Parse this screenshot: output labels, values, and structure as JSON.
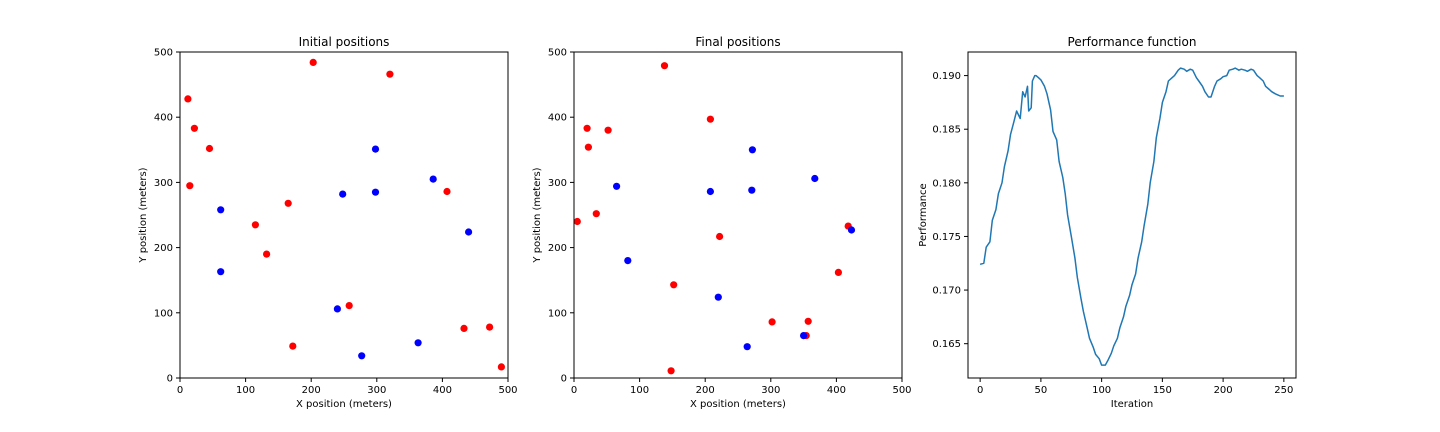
{
  "chart_data": [
    {
      "type": "scatter",
      "title": "Initial positions",
      "xlabel": "X position (meters)",
      "ylabel": "Y position (meters)",
      "xlim": [
        0,
        500
      ],
      "ylim": [
        0,
        500
      ],
      "xticks": [
        0,
        100,
        200,
        300,
        400,
        500
      ],
      "yticks": [
        0,
        100,
        200,
        300,
        400,
        500
      ],
      "grid": false,
      "series": [
        {
          "color": "#ff0000",
          "points": [
            [
              12,
              428
            ],
            [
              22,
              383
            ],
            [
              45,
              352
            ],
            [
              15,
              295
            ],
            [
              115,
              235
            ],
            [
              132,
              190
            ],
            [
              165,
              268
            ],
            [
              203,
              484
            ],
            [
              320,
              466
            ],
            [
              407,
              286
            ],
            [
              258,
              111
            ],
            [
              172,
              49
            ],
            [
              433,
              76
            ],
            [
              472,
              78
            ],
            [
              490,
              17
            ]
          ]
        },
        {
          "color": "#0000ff",
          "points": [
            [
              62,
              258
            ],
            [
              62,
              163
            ],
            [
              248,
              282
            ],
            [
              298,
              351
            ],
            [
              298,
              285
            ],
            [
              386,
              305
            ],
            [
              440,
              224
            ],
            [
              240,
              106
            ],
            [
              277,
              34
            ],
            [
              363,
              54
            ]
          ]
        }
      ]
    },
    {
      "type": "scatter",
      "title": "Final positions",
      "xlabel": "X position (meters)",
      "ylabel": "Y position (meters)",
      "xlim": [
        0,
        500
      ],
      "ylim": [
        0,
        500
      ],
      "xticks": [
        0,
        100,
        200,
        300,
        400,
        500
      ],
      "yticks": [
        0,
        100,
        200,
        300,
        400,
        500
      ],
      "grid": false,
      "series": [
        {
          "color": "#ff0000",
          "points": [
            [
              138,
              479
            ],
            [
              20,
              383
            ],
            [
              52,
              380
            ],
            [
              22,
              354
            ],
            [
              208,
              397
            ],
            [
              5,
              240
            ],
            [
              34,
              252
            ],
            [
              222,
              217
            ],
            [
              152,
              143
            ],
            [
              148,
              11
            ],
            [
              302,
              86
            ],
            [
              357,
              87
            ],
            [
              354,
              65
            ],
            [
              418,
              233
            ],
            [
              403,
              162
            ]
          ]
        },
        {
          "color": "#0000ff",
          "points": [
            [
              65,
              294
            ],
            [
              82,
              180
            ],
            [
              208,
              286
            ],
            [
              272,
              350
            ],
            [
              271,
              288
            ],
            [
              367,
              306
            ],
            [
              423,
              227
            ],
            [
              220,
              124
            ],
            [
              264,
              48
            ],
            [
              350,
              65
            ]
          ]
        }
      ]
    },
    {
      "type": "line",
      "title": "Performance function",
      "xlabel": "Iteration",
      "ylabel": "Performance",
      "xlim": [
        -10,
        260
      ],
      "ylim": [
        0.1618,
        0.1922
      ],
      "xticks": [
        0,
        50,
        100,
        150,
        200,
        250
      ],
      "yticks": [
        0.165,
        0.17,
        0.175,
        0.18,
        0.185,
        0.19
      ],
      "ytick_labels": [
        "0.165",
        "0.170",
        "0.175",
        "0.180",
        "0.185",
        "0.190"
      ],
      "grid": false,
      "series": [
        {
          "color": "#1f77b4",
          "x": [
            0,
            3,
            5,
            8,
            10,
            13,
            15,
            18,
            20,
            23,
            25,
            28,
            30,
            33,
            35,
            37,
            39,
            40,
            42,
            43,
            45,
            46,
            48,
            50,
            53,
            55,
            58,
            60,
            63,
            65,
            68,
            70,
            72,
            75,
            78,
            80,
            83,
            85,
            88,
            90,
            93,
            95,
            98,
            100,
            103,
            105,
            108,
            110,
            113,
            115,
            118,
            120,
            123,
            125,
            128,
            130,
            133,
            135,
            138,
            140,
            143,
            145,
            148,
            150,
            153,
            155,
            158,
            160,
            163,
            165,
            168,
            170,
            173,
            175,
            178,
            180,
            183,
            185,
            188,
            190,
            193,
            195,
            198,
            200,
            203,
            205,
            208,
            210,
            213,
            215,
            218,
            220,
            223,
            225,
            228,
            230,
            233,
            235,
            238,
            240,
            243,
            245,
            247,
            248,
            250
          ],
          "y": [
            0.1724,
            0.1725,
            0.174,
            0.1745,
            0.1765,
            0.1775,
            0.179,
            0.18,
            0.1815,
            0.183,
            0.1845,
            0.1858,
            0.1867,
            0.186,
            0.1885,
            0.188,
            0.189,
            0.1867,
            0.187,
            0.1895,
            0.19,
            0.19,
            0.1898,
            0.1896,
            0.189,
            0.1883,
            0.1868,
            0.1848,
            0.184,
            0.182,
            0.1805,
            0.179,
            0.177,
            0.175,
            0.173,
            0.1712,
            0.1692,
            0.168,
            0.1665,
            0.1655,
            0.1647,
            0.164,
            0.1636,
            0.163,
            0.163,
            0.1634,
            0.1641,
            0.1648,
            0.1655,
            0.1665,
            0.1675,
            0.1685,
            0.1695,
            0.1705,
            0.1715,
            0.173,
            0.1745,
            0.176,
            0.178,
            0.18,
            0.182,
            0.1842,
            0.186,
            0.1875,
            0.1885,
            0.1895,
            0.1898,
            0.19,
            0.1905,
            0.1907,
            0.1906,
            0.1904,
            0.1906,
            0.1905,
            0.1898,
            0.1895,
            0.189,
            0.1885,
            0.188,
            0.188,
            0.189,
            0.1895,
            0.1897,
            0.1899,
            0.19,
            0.1905,
            0.1906,
            0.1907,
            0.1905,
            0.1906,
            0.1905,
            0.1904,
            0.1906,
            0.1905,
            0.19,
            0.1898,
            0.1895,
            0.189,
            0.1887,
            0.1885,
            0.1883,
            0.1882,
            0.1881,
            0.1881,
            0.1881
          ]
        }
      ]
    }
  ]
}
